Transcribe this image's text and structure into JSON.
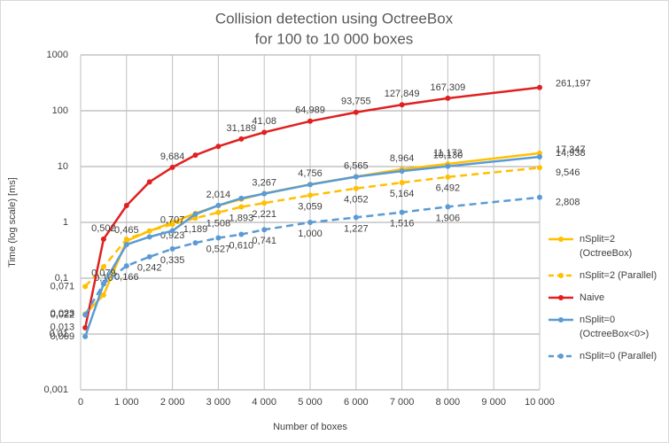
{
  "chart_data": {
    "type": "line",
    "title": "Collision detection using OctreeBox",
    "subtitle": "for 100 to 10 000 boxes",
    "x_label": "Number  of boxes",
    "y_label": "Time (log scale) [ms]",
    "y_log": true,
    "grid": true,
    "xlim": [
      0,
      10000
    ],
    "xticks": [
      0,
      {
        "value": 1000,
        "label": "1 000"
      },
      {
        "value": 2000,
        "label": "2 000"
      },
      {
        "value": 3000,
        "label": "3 000"
      },
      {
        "value": 4000,
        "label": "4 000"
      },
      {
        "value": 5000,
        "label": "5 000"
      },
      {
        "value": 6000,
        "label": "6 000"
      },
      {
        "value": 7000,
        "label": "7 000"
      },
      {
        "value": 8000,
        "label": "8 000"
      },
      {
        "value": 9000,
        "label": "9 000"
      },
      {
        "value": 10000,
        "label": "10 000"
      }
    ],
    "ylim": [
      0.001,
      1000
    ],
    "yticks": [
      {
        "value": 0.001,
        "label": "0,001"
      },
      {
        "value": 0.01,
        "label": "0,01"
      },
      {
        "value": 0.1,
        "label": "0,1"
      },
      1,
      10,
      100,
      1000
    ],
    "x": [
      100,
      500,
      1000,
      1500,
      2000,
      2500,
      3000,
      3500,
      4000,
      5000,
      6000,
      7000,
      8000,
      10000
    ],
    "series": [
      {
        "name": "nSplit=2 (OctreeBox)",
        "color": "#ffc000",
        "dash": false,
        "label_side": "above",
        "values": [
          0.023,
          0.05,
          0.465,
          0.7,
          1.0,
          1.45,
          2.0,
          2.6,
          3.3,
          4.8,
          6.6,
          8.964,
          11.172,
          17.347
        ],
        "value_labels": [
          "0,023",
          null,
          "0,465",
          null,
          null,
          null,
          null,
          null,
          null,
          null,
          null,
          "8,964",
          "11,172",
          "17,347"
        ]
      },
      {
        "name": "nSplit=2 (Parallel)",
        "color": "#ffc000",
        "dash": true,
        "label_side": "below",
        "values": [
          0.071,
          0.16,
          0.5,
          0.7,
          0.923,
          1.189,
          1.508,
          1.893,
          2.221,
          3.059,
          4.052,
          5.164,
          6.492,
          9.546
        ],
        "value_labels": [
          "0,071",
          "0,16",
          null,
          null,
          "0,923",
          "1,189",
          "1,508",
          "1,893",
          "2,221",
          "3,059",
          "4,052",
          "5,164",
          "6,492",
          "9,546"
        ]
      },
      {
        "name": "Naive",
        "color": "#e02020",
        "dash": false,
        "label_side": "above",
        "values": [
          0.013,
          0.502,
          2.0,
          5.3,
          9.684,
          16,
          23,
          31.189,
          41.08,
          64.989,
          93.755,
          127.849,
          167.309,
          261.197
        ],
        "value_labels": [
          "0,013",
          "0,502",
          null,
          null,
          "9,684",
          null,
          null,
          "31,189",
          "41,08",
          "64,989",
          "93,755",
          "127,849",
          "167,309",
          "261,197"
        ]
      },
      {
        "name": "nSplit=0 (OctreeBox<0>)",
        "color": "#5b9bd5",
        "dash": false,
        "label_side": "above",
        "values": [
          0.009,
          0.079,
          0.4,
          0.55,
          0.707,
          1.4,
          2.014,
          2.7,
          3.267,
          4.756,
          6.565,
          8.3,
          10.13,
          14.938
        ],
        "value_labels": [
          "0,009",
          "0,079",
          null,
          null,
          "0,707",
          null,
          "2,014",
          null,
          "3,267",
          "4,756",
          "6,565",
          null,
          "10,130",
          "14,938"
        ]
      },
      {
        "name": "nSplit=0 (Parallel)",
        "color": "#5b9bd5",
        "dash": true,
        "label_side": "below",
        "values": [
          0.022,
          0.08,
          0.166,
          0.242,
          0.335,
          0.43,
          0.527,
          0.61,
          0.741,
          1.0,
          1.227,
          1.516,
          1.906,
          2.808
        ],
        "value_labels": [
          "0,022",
          null,
          "0,166",
          "0,242",
          "0,335",
          null,
          "0,527",
          "0,610",
          "0,741",
          "1,000",
          "1,227",
          "1,516",
          "1,906",
          "2,808"
        ]
      }
    ]
  }
}
